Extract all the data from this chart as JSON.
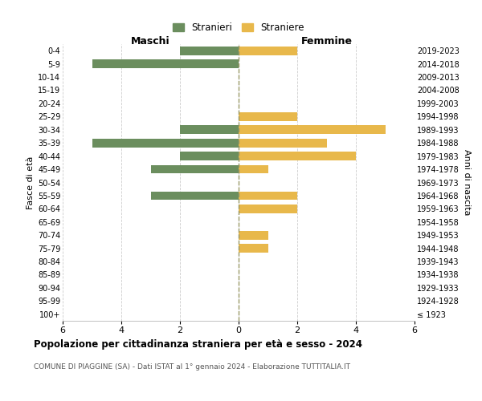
{
  "age_groups": [
    "100+",
    "95-99",
    "90-94",
    "85-89",
    "80-84",
    "75-79",
    "70-74",
    "65-69",
    "60-64",
    "55-59",
    "50-54",
    "45-49",
    "40-44",
    "35-39",
    "30-34",
    "25-29",
    "20-24",
    "15-19",
    "10-14",
    "5-9",
    "0-4"
  ],
  "birth_years": [
    "≤ 1923",
    "1924-1928",
    "1929-1933",
    "1934-1938",
    "1939-1943",
    "1944-1948",
    "1949-1953",
    "1954-1958",
    "1959-1963",
    "1964-1968",
    "1969-1973",
    "1974-1978",
    "1979-1983",
    "1984-1988",
    "1989-1993",
    "1994-1998",
    "1999-2003",
    "2004-2008",
    "2009-2013",
    "2014-2018",
    "2019-2023"
  ],
  "males": [
    0,
    0,
    0,
    0,
    0,
    0,
    0,
    0,
    0,
    3,
    0,
    3,
    2,
    5,
    2,
    0,
    0,
    0,
    0,
    5,
    2
  ],
  "females": [
    0,
    0,
    0,
    0,
    0,
    1,
    1,
    0,
    2,
    2,
    0,
    1,
    4,
    3,
    5,
    2,
    0,
    0,
    0,
    0,
    2
  ],
  "male_color": "#6b8e5e",
  "female_color": "#e8b84b",
  "title": "Popolazione per cittadinanza straniera per età e sesso - 2024",
  "subtitle": "COMUNE DI PIAGGINE (SA) - Dati ISTAT al 1° gennaio 2024 - Elaborazione TUTTITALIA.IT",
  "xlabel_left": "Maschi",
  "xlabel_right": "Femmine",
  "ylabel_left": "Fasce di età",
  "ylabel_right": "Anni di nascita",
  "legend_male": "Stranieri",
  "legend_female": "Straniere",
  "xlim": 6,
  "background_color": "#ffffff",
  "grid_color": "#cccccc"
}
